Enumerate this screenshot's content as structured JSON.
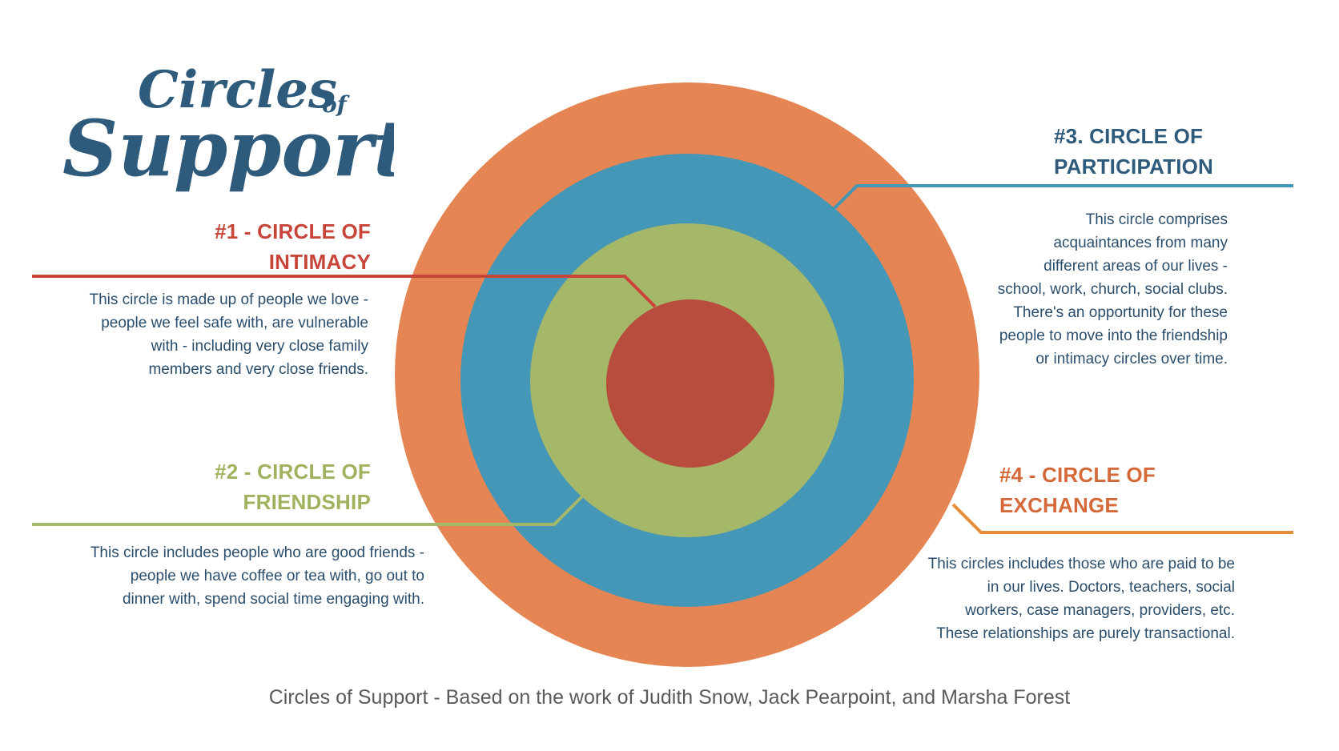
{
  "logo": {
    "line1": "Circles",
    "of": "of",
    "line2": "Support",
    "color": "#2e5a7c"
  },
  "colors": {
    "intimacy": "#b84c3d",
    "friendship": "#a5b768",
    "participation": "#4597b8",
    "exchange": "#e48553",
    "heading_intimacy": "#c8453a",
    "heading_friendship": "#9fb35f",
    "heading_participation": "#2e5a7c",
    "heading_exchange": "#d5693a",
    "body_text": "#2a4e6c",
    "caption": "#5a5a5a"
  },
  "circles": {
    "intimacy": {
      "title_line1": "#1 - CIRCLE OF",
      "title_line2": "INTIMACY",
      "description": "This circle is made up of people we love - people we feel safe with, are vulnerable with - including very close family members and very close friends."
    },
    "friendship": {
      "title_line1": "#2 - CIRCLE OF",
      "title_line2": "FRIENDSHIP",
      "description": "This circle includes people who are good friends - people we have coffee or tea with, go out to dinner with, spend social time engaging with."
    },
    "participation": {
      "title_line1": "#3. CIRCLE OF",
      "title_line2": "PARTICIPATION",
      "description": "This circle comprises acquaintances from many different areas of our lives - school, work, church, social clubs.  There's an opportunity for these people to move into the friendship or intimacy circles over time."
    },
    "exchange": {
      "title_line1": "#4 - CIRCLE OF",
      "title_line2": "EXCHANGE",
      "description": "This circles includes those who are paid to be in our lives. Doctors, teachers, social workers, case managers, providers, etc. These relationships are purely transactional."
    }
  },
  "caption": "Circles of Support - Based on the work of Judith Snow, Jack Pearpoint, and Marsha Forest"
}
